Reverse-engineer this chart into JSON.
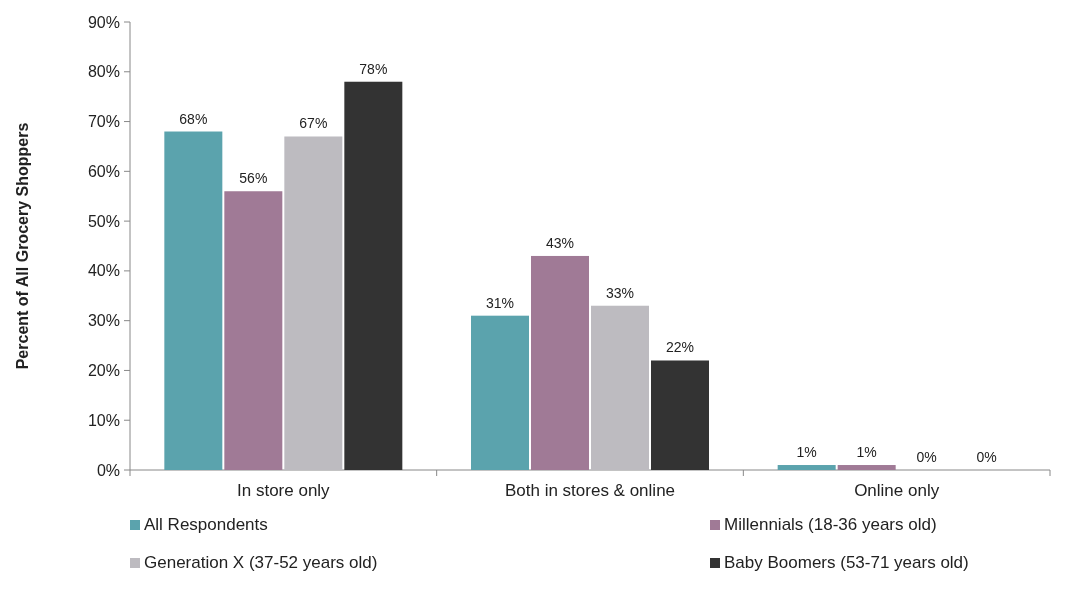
{
  "chart_data": {
    "type": "bar",
    "ylabel": "Percent of All Grocery Shoppers",
    "categories": [
      "In store only",
      "Both in stores & online",
      "Online only"
    ],
    "series": [
      {
        "name": "All Respondents",
        "color": "#5ba3ad",
        "values": [
          68,
          31,
          1
        ]
      },
      {
        "name": "Millennials (18-36 years old)",
        "color": "#a07a96",
        "values": [
          56,
          43,
          1
        ]
      },
      {
        "name": "Generation X (37-52 years old)",
        "color": "#bdbbc0",
        "values": [
          67,
          33,
          0
        ]
      },
      {
        "name": "Baby Boomers (53-71 years old)",
        "color": "#333333",
        "values": [
          78,
          22,
          0
        ]
      }
    ],
    "ylim": [
      0,
      90
    ],
    "yticks": [
      {
        "value": 0,
        "label": "0%"
      },
      {
        "value": 10,
        "label": "10%"
      },
      {
        "value": 20,
        "label": "20%"
      },
      {
        "value": 30,
        "label": "30%"
      },
      {
        "value": 40,
        "label": "40%"
      },
      {
        "value": 50,
        "label": "50%"
      },
      {
        "value": 60,
        "label": "60%"
      },
      {
        "value": 70,
        "label": "70%"
      },
      {
        "value": 80,
        "label": "80%"
      },
      {
        "value": 90,
        "label": "90%"
      }
    ],
    "value_labels": [
      [
        "68%",
        "31%",
        "1%"
      ],
      [
        "56%",
        "43%",
        "1%"
      ],
      [
        "67%",
        "33%",
        "0%"
      ],
      [
        "78%",
        "22%",
        "0%"
      ]
    ],
    "legend": "bottom",
    "grid": false
  }
}
